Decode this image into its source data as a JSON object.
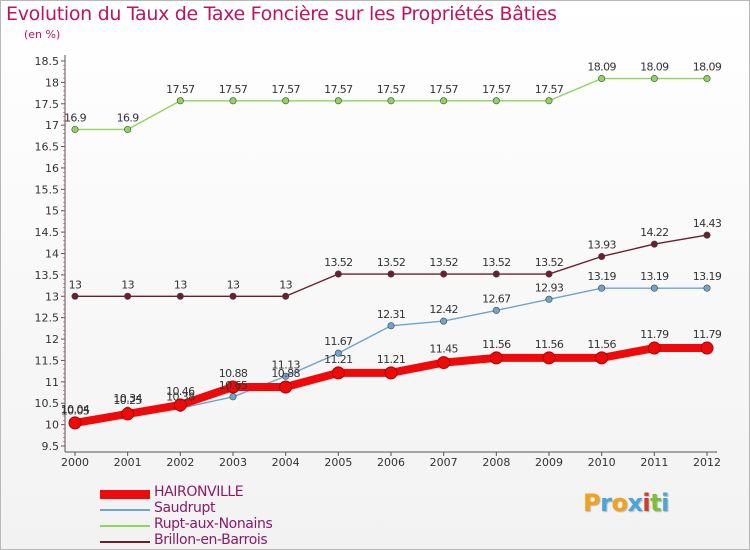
{
  "title": "Evolution du Taux de Taxe Foncière sur les Propriétés Bâties",
  "subtitle": "(en %)",
  "chart_data": {
    "type": "line",
    "x": [
      "2000",
      "2001",
      "2002",
      "2003",
      "2004",
      "2005",
      "2006",
      "2007",
      "2008",
      "2009",
      "2010",
      "2011",
      "2012"
    ],
    "ylim": [
      9.5,
      18.5
    ],
    "yticks": [
      "9.5",
      "10",
      "10.5",
      "11",
      "11.5",
      "12",
      "12.5",
      "13",
      "13.5",
      "14",
      "14.5",
      "15",
      "15.5",
      "16",
      "16.5",
      "17",
      "17.5",
      "18",
      "18.5"
    ],
    "grid": false,
    "legend_position": "bottom-left",
    "series": [
      {
        "name": "HAIRONVILLE",
        "color": "#ee0a0a",
        "values": [
          10.04,
          10.25,
          10.46,
          10.88,
          10.88,
          11.21,
          11.21,
          11.45,
          11.56,
          11.56,
          11.56,
          11.79,
          11.79
        ],
        "labels": [
          "10.04",
          "10.25",
          "10.46",
          "10.88",
          "10.88",
          "11.21",
          "11.21",
          "11.45",
          "11.56",
          "11.56",
          "11.56",
          "11.79",
          "11.79"
        ]
      },
      {
        "name": "Saudrupt",
        "color": "#6ea4cf",
        "values": [
          10.05,
          10.34,
          10.38,
          10.65,
          11.13,
          11.67,
          12.31,
          12.42,
          12.67,
          12.93,
          13.19,
          13.19,
          13.19
        ],
        "labels": [
          "10.05",
          "10.34",
          "10.38",
          "10.65",
          "11.13",
          "11.67",
          "12.31",
          "12.42",
          "12.67",
          "12.93",
          "13.19",
          "13.19",
          "13.19"
        ]
      },
      {
        "name": "Rupt-aux-Nonains",
        "color": "#8dd65a",
        "values": [
          16.9,
          16.9,
          17.57,
          17.57,
          17.57,
          17.57,
          17.57,
          17.57,
          17.57,
          17.57,
          18.09,
          18.09,
          18.09
        ],
        "labels": [
          "16.9",
          "16.9",
          "17.57",
          "17.57",
          "17.57",
          "17.57",
          "17.57",
          "17.57",
          "17.57",
          "17.57",
          "18.09",
          "18.09",
          "18.09"
        ]
      },
      {
        "name": "Brillon-en-Barrois",
        "color": "#6b1e2e",
        "values": [
          13,
          13,
          13,
          13,
          13,
          13.52,
          13.52,
          13.52,
          13.52,
          13.52,
          13.93,
          14.22,
          14.43
        ],
        "labels": [
          "13",
          "13",
          "13",
          "13",
          "13",
          "13.52",
          "13.52",
          "13.52",
          "13.52",
          "13.52",
          "13.93",
          "14.22",
          "14.43"
        ]
      }
    ]
  },
  "logo": {
    "letters": [
      "P",
      "r",
      "o",
      "x",
      "i",
      "t",
      "i"
    ],
    "colors": [
      "#f2a21a",
      "#4aa5d8",
      "#f2a21a",
      "#4aa5d8",
      "#d23a2a",
      "#7bbf3c",
      "#4aa5d8"
    ]
  }
}
